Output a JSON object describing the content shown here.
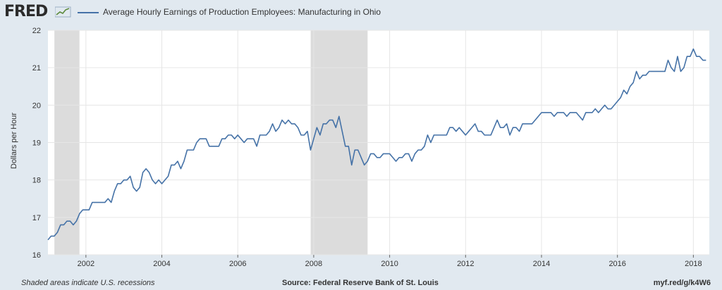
{
  "header": {
    "logo": "FRED",
    "logo_icon": "line-chart-icon",
    "series_title": "Average Hourly Earnings of Production Employees: Manufacturing in Ohio"
  },
  "footer": {
    "note": "Shaded areas indicate U.S. recessions",
    "source": "Source: Federal Reserve Bank of St. Louis",
    "url": "myf.red/g/k4W6"
  },
  "colors": {
    "background": "#e1e9f0",
    "plot_bg": "#ffffff",
    "series": "#4572a7",
    "recession": "#dcdcdc",
    "grid": "#e6e6e6"
  },
  "chart_data": {
    "type": "line",
    "title": "Average Hourly Earnings of Production Employees: Manufacturing in Ohio",
    "xlabel": "",
    "ylabel": "Dollars per Hour",
    "xlim": [
      2001.0,
      2018.42
    ],
    "ylim": [
      16,
      22
    ],
    "x_ticks": [
      2002,
      2004,
      2006,
      2008,
      2010,
      2012,
      2014,
      2016,
      2018
    ],
    "y_ticks": [
      16,
      17,
      18,
      19,
      20,
      21,
      22
    ],
    "grid": true,
    "legend": "top-left",
    "recessions": [
      [
        2001.17,
        2001.83
      ],
      [
        2007.92,
        2009.42
      ]
    ],
    "series": [
      {
        "name": "Average Hourly Earnings of Production Employees: Manufacturing in Ohio",
        "start": "2001-01",
        "frequency": "monthly",
        "values": [
          16.4,
          16.5,
          16.5,
          16.6,
          16.8,
          16.8,
          16.9,
          16.9,
          16.8,
          16.9,
          17.1,
          17.2,
          17.2,
          17.2,
          17.4,
          17.4,
          17.4,
          17.4,
          17.4,
          17.5,
          17.4,
          17.7,
          17.9,
          17.9,
          18.0,
          18.0,
          18.1,
          17.8,
          17.7,
          17.8,
          18.2,
          18.3,
          18.2,
          18.0,
          17.9,
          18.0,
          17.9,
          18.0,
          18.1,
          18.4,
          18.4,
          18.5,
          18.3,
          18.5,
          18.8,
          18.8,
          18.8,
          19.0,
          19.1,
          19.1,
          19.1,
          18.9,
          18.9,
          18.9,
          18.9,
          19.1,
          19.1,
          19.2,
          19.2,
          19.1,
          19.2,
          19.1,
          19.0,
          19.1,
          19.1,
          19.1,
          18.9,
          19.2,
          19.2,
          19.2,
          19.3,
          19.5,
          19.3,
          19.4,
          19.6,
          19.5,
          19.6,
          19.5,
          19.5,
          19.4,
          19.2,
          19.2,
          19.3,
          18.8,
          19.1,
          19.4,
          19.2,
          19.5,
          19.5,
          19.6,
          19.6,
          19.4,
          19.7,
          19.3,
          18.9,
          18.9,
          18.4,
          18.8,
          18.8,
          18.6,
          18.4,
          18.5,
          18.7,
          18.7,
          18.6,
          18.6,
          18.7,
          18.7,
          18.7,
          18.6,
          18.5,
          18.6,
          18.6,
          18.7,
          18.7,
          18.5,
          18.7,
          18.8,
          18.8,
          18.9,
          19.2,
          19.0,
          19.2,
          19.2,
          19.2,
          19.2,
          19.2,
          19.4,
          19.4,
          19.3,
          19.4,
          19.3,
          19.2,
          19.3,
          19.4,
          19.5,
          19.3,
          19.3,
          19.2,
          19.2,
          19.2,
          19.4,
          19.6,
          19.4,
          19.4,
          19.5,
          19.2,
          19.4,
          19.4,
          19.3,
          19.5,
          19.5,
          19.5,
          19.5,
          19.6,
          19.7,
          19.8,
          19.8,
          19.8,
          19.8,
          19.7,
          19.8,
          19.8,
          19.8,
          19.7,
          19.8,
          19.8,
          19.8,
          19.7,
          19.6,
          19.8,
          19.8,
          19.8,
          19.9,
          19.8,
          19.9,
          20.0,
          19.9,
          19.9,
          20.0,
          20.1,
          20.2,
          20.4,
          20.3,
          20.5,
          20.6,
          20.9,
          20.7,
          20.8,
          20.8,
          20.9,
          20.9,
          20.9,
          20.9,
          20.9,
          20.9,
          21.2,
          21.0,
          20.9,
          21.3,
          20.9,
          21.0,
          21.3,
          21.3,
          21.5,
          21.3,
          21.3,
          21.2,
          21.2
        ]
      }
    ]
  }
}
